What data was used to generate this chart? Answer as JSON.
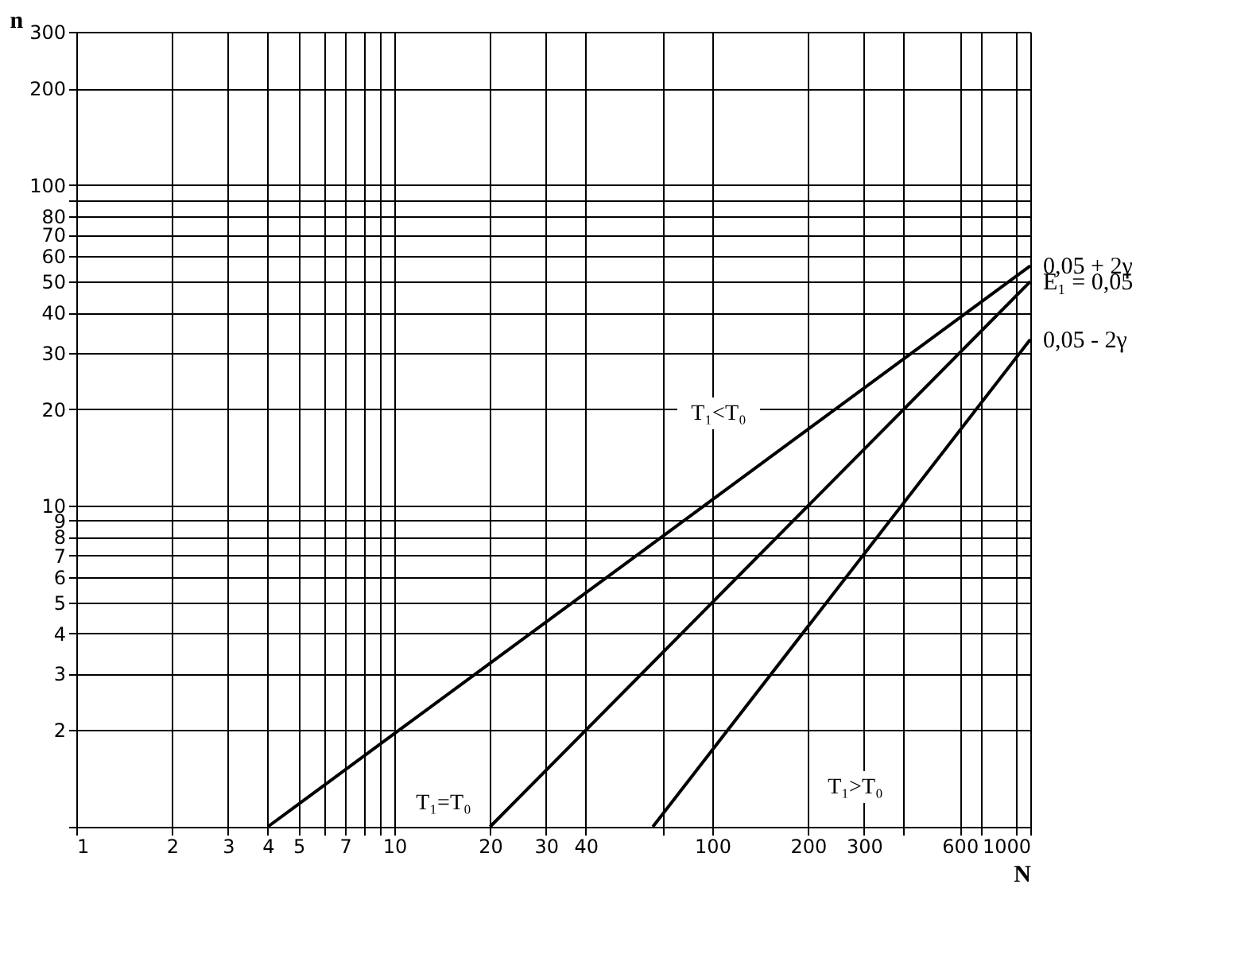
{
  "chart_data": {
    "type": "line",
    "xlabel": "N",
    "ylabel": "n",
    "log": "xy",
    "grid": true,
    "legend": false,
    "marker": "none",
    "line_style": "solid",
    "xlim": [
      1,
      1000
    ],
    "ylim": [
      1,
      300
    ],
    "xticks": [
      1,
      2,
      3,
      4,
      5,
      {
        "value": 6,
        "label": null
      },
      7,
      {
        "value": 8,
        "label": null
      },
      {
        "value": 9,
        "label": null
      },
      10,
      20,
      30,
      40,
      {
        "value": 70,
        "label": null
      },
      100,
      200,
      300,
      {
        "value": 400,
        "label": null
      },
      600,
      {
        "value": 700,
        "label": null
      },
      {
        "value": 900,
        "label": null
      },
      1000
    ],
    "yticks": [
      {
        "value": 1,
        "label": null
      },
      2,
      3,
      4,
      5,
      6,
      7,
      8,
      9,
      10,
      20,
      30,
      40,
      50,
      60,
      70,
      80,
      {
        "value": 90,
        "label": null
      },
      100,
      200,
      300
    ],
    "series": [
      {
        "name": "0,05 + 2γ",
        "color": "#000000",
        "x": [
          4,
          1000
        ],
        "values": [
          1,
          56
        ]
      },
      {
        "name": "E₁ = 0,05",
        "color": "#000000",
        "x": [
          20,
          1000
        ],
        "values": [
          1,
          50
        ]
      },
      {
        "name": "0,05 - 2γ",
        "color": "#000000",
        "x": [
          65,
          1000
        ],
        "values": [
          1,
          33
        ]
      }
    ],
    "annotations": [
      "T₁<T₀",
      "T₁=T₀",
      "T₁>T₀"
    ]
  }
}
